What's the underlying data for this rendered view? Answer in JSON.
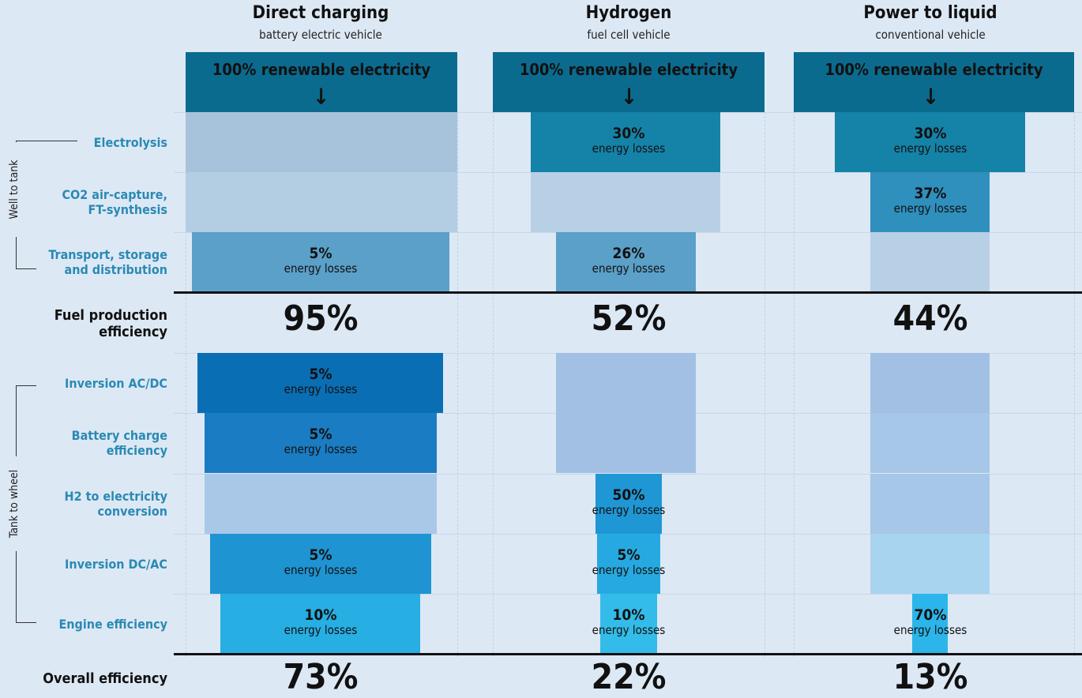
{
  "columns": [
    {
      "title": "Direct charging",
      "subtitle": "battery electric vehicle",
      "source": "100% renewable electricity",
      "well_to_tank": [
        null,
        null,
        "5%"
      ],
      "fuel_efficiency": "95%",
      "tank_to_wheel": [
        "5%",
        "5%",
        null,
        "5%",
        "10%"
      ],
      "overall": "73%"
    },
    {
      "title": "Hydrogen",
      "subtitle": "fuel cell vehicle",
      "source": "100% renewable electricity",
      "well_to_tank": [
        "30%",
        null,
        "26%"
      ],
      "fuel_efficiency": "52%",
      "tank_to_wheel": [
        null,
        null,
        "50%",
        "5%",
        "10%"
      ],
      "overall": "22%"
    },
    {
      "title": "Power to liquid",
      "subtitle": "conventional vehicle",
      "source": "100% renewable electricity",
      "well_to_tank": [
        "30%",
        "37%",
        null
      ],
      "fuel_efficiency": "44%",
      "tank_to_wheel": [
        null,
        null,
        null,
        null,
        "70%"
      ],
      "overall": "13%"
    }
  ],
  "loss_label": "energy losses",
  "groups": {
    "well_to_tank": "Well to tank",
    "tank_to_wheel": "Tank to wheel"
  },
  "well_to_tank_stages": [
    "Electrolysis",
    "CO2 air-capture,\nFT-synthesis",
    "Transport, storage\nand distribution"
  ],
  "fuel_efficiency_label": "Fuel production\nefficiency",
  "tank_to_wheel_stages": [
    "Inversion AC/DC",
    "Battery charge\nefficiency",
    "H2 to electricity\nconversion",
    "Inversion DC/AC",
    "Engine efficiency"
  ],
  "overall_label": "Overall efficiency"
}
